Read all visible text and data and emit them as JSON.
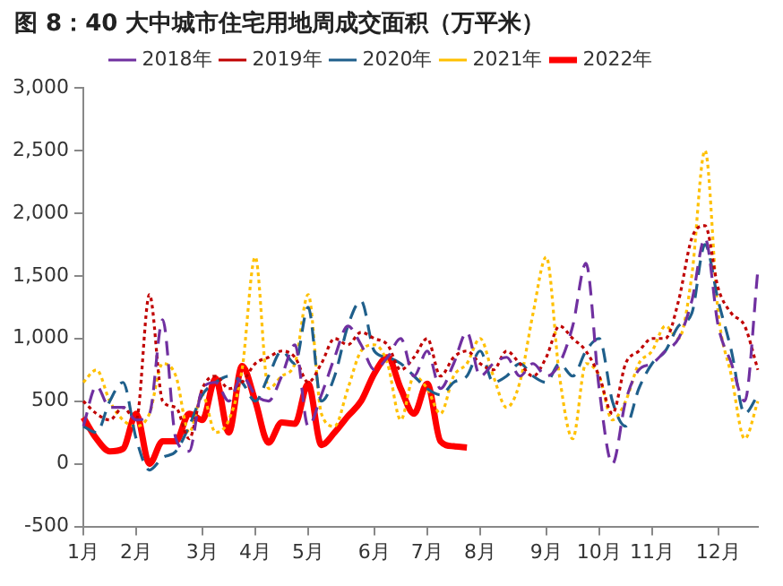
{
  "chart_data": {
    "type": "line",
    "title": "图 8：40 大中城市住宅用地周成交面积（万平米）",
    "categories": [
      "1月",
      null,
      null,
      null,
      "2月",
      null,
      null,
      null,
      null,
      "3月",
      null,
      null,
      null,
      "4月",
      null,
      null,
      null,
      "5月",
      null,
      null,
      null,
      null,
      "6月",
      null,
      null,
      null,
      "7月",
      null,
      null,
      null,
      "8月",
      null,
      null,
      null,
      null,
      "9月",
      null,
      null,
      null,
      "10月",
      null,
      null,
      null,
      "11月",
      null,
      null,
      null,
      null,
      "12月",
      null,
      null,
      null
    ],
    "ylim": [
      -500,
      3000
    ],
    "yticks": [
      {
        "value": -500,
        "label": "-500"
      },
      0,
      500,
      {
        "value": 1000,
        "label": "1,000"
      },
      {
        "value": 1500,
        "label": "1,500"
      },
      {
        "value": 2000,
        "label": "2,000"
      },
      {
        "value": 2500,
        "label": "2,500"
      },
      {
        "value": 3000,
        "label": "3,000"
      }
    ],
    "grid": false,
    "legend": "top",
    "marker": "none",
    "series": [
      {
        "name": "2018年",
        "color": "#7030a0",
        "line_style": "dashed",
        "values": [
          300,
          620,
          450,
          450,
          350,
          400,
          1150,
          200,
          100,
          600,
          650,
          500,
          700,
          550,
          500,
          700,
          950,
          300,
          550,
          850,
          1100,
          950,
          750,
          850,
          1000,
          700,
          900,
          600,
          800,
          1050,
          700,
          800,
          850,
          700,
          800,
          700,
          800,
          1100,
          1600,
          600,
          0,
          500,
          750,
          800,
          900,
          1000,
          1300,
          1800,
          1100,
          800,
          500,
          1550
        ]
      },
      {
        "name": "2019年",
        "color": "#c00000",
        "line_style": "dotted",
        "values": [
          500,
          400,
          350,
          450,
          350,
          1350,
          500,
          450,
          200,
          600,
          700,
          600,
          650,
          800,
          850,
          900,
          850,
          650,
          800,
          1000,
          950,
          1050,
          1000,
          950,
          750,
          850,
          1000,
          700,
          850,
          900,
          800,
          750,
          900,
          800,
          700,
          850,
          1100,
          1000,
          900,
          700,
          400,
          800,
          900,
          1000,
          1000,
          1300,
          1800,
          1900,
          1400,
          1200,
          1100,
          750
        ]
      },
      {
        "name": "2020年",
        "color": "#1f5f8b",
        "line_style": "dashed",
        "values": [
          300,
          250,
          500,
          650,
          200,
          -50,
          50,
          100,
          300,
          550,
          650,
          700,
          650,
          500,
          700,
          900,
          800,
          1250,
          500,
          700,
          1100,
          1300,
          900,
          850,
          800,
          700,
          600,
          550,
          650,
          700,
          900,
          650,
          700,
          800,
          700,
          650,
          800,
          700,
          900,
          1000,
          500,
          300,
          600,
          800,
          900,
          1100,
          1200,
          1750,
          1300,
          900,
          400,
          550
        ]
      },
      {
        "name": "2021年",
        "color": "#ffc000",
        "line_style": "dotted",
        "values": [
          650,
          750,
          500,
          350,
          300,
          400,
          800,
          700,
          250,
          550,
          250,
          350,
          750,
          1650,
          600,
          700,
          800,
          1350,
          400,
          300,
          600,
          900,
          950,
          800,
          350,
          700,
          600,
          400,
          700,
          800,
          1000,
          700,
          450,
          650,
          1200,
          1650,
          700,
          200,
          800,
          700,
          350,
          500,
          800,
          900,
          1100,
          1000,
          1500,
          2500,
          1200,
          700,
          200,
          500
        ]
      },
      {
        "name": "2022年",
        "color": "#ff0000",
        "line_style": "solid",
        "values": [
          370,
          200,
          100,
          120,
          400,
          0,
          180,
          180,
          400,
          350,
          680,
          250,
          780,
          500,
          170,
          330,
          320,
          640,
          150,
          250,
          380,
          500,
          720,
          850,
          600,
          400,
          640,
          180,
          140,
          130,
          null,
          null,
          null,
          null,
          null,
          null,
          null,
          null,
          null,
          null,
          null,
          null,
          null,
          null,
          null,
          null,
          null,
          null,
          null,
          null,
          null,
          null
        ]
      }
    ]
  }
}
